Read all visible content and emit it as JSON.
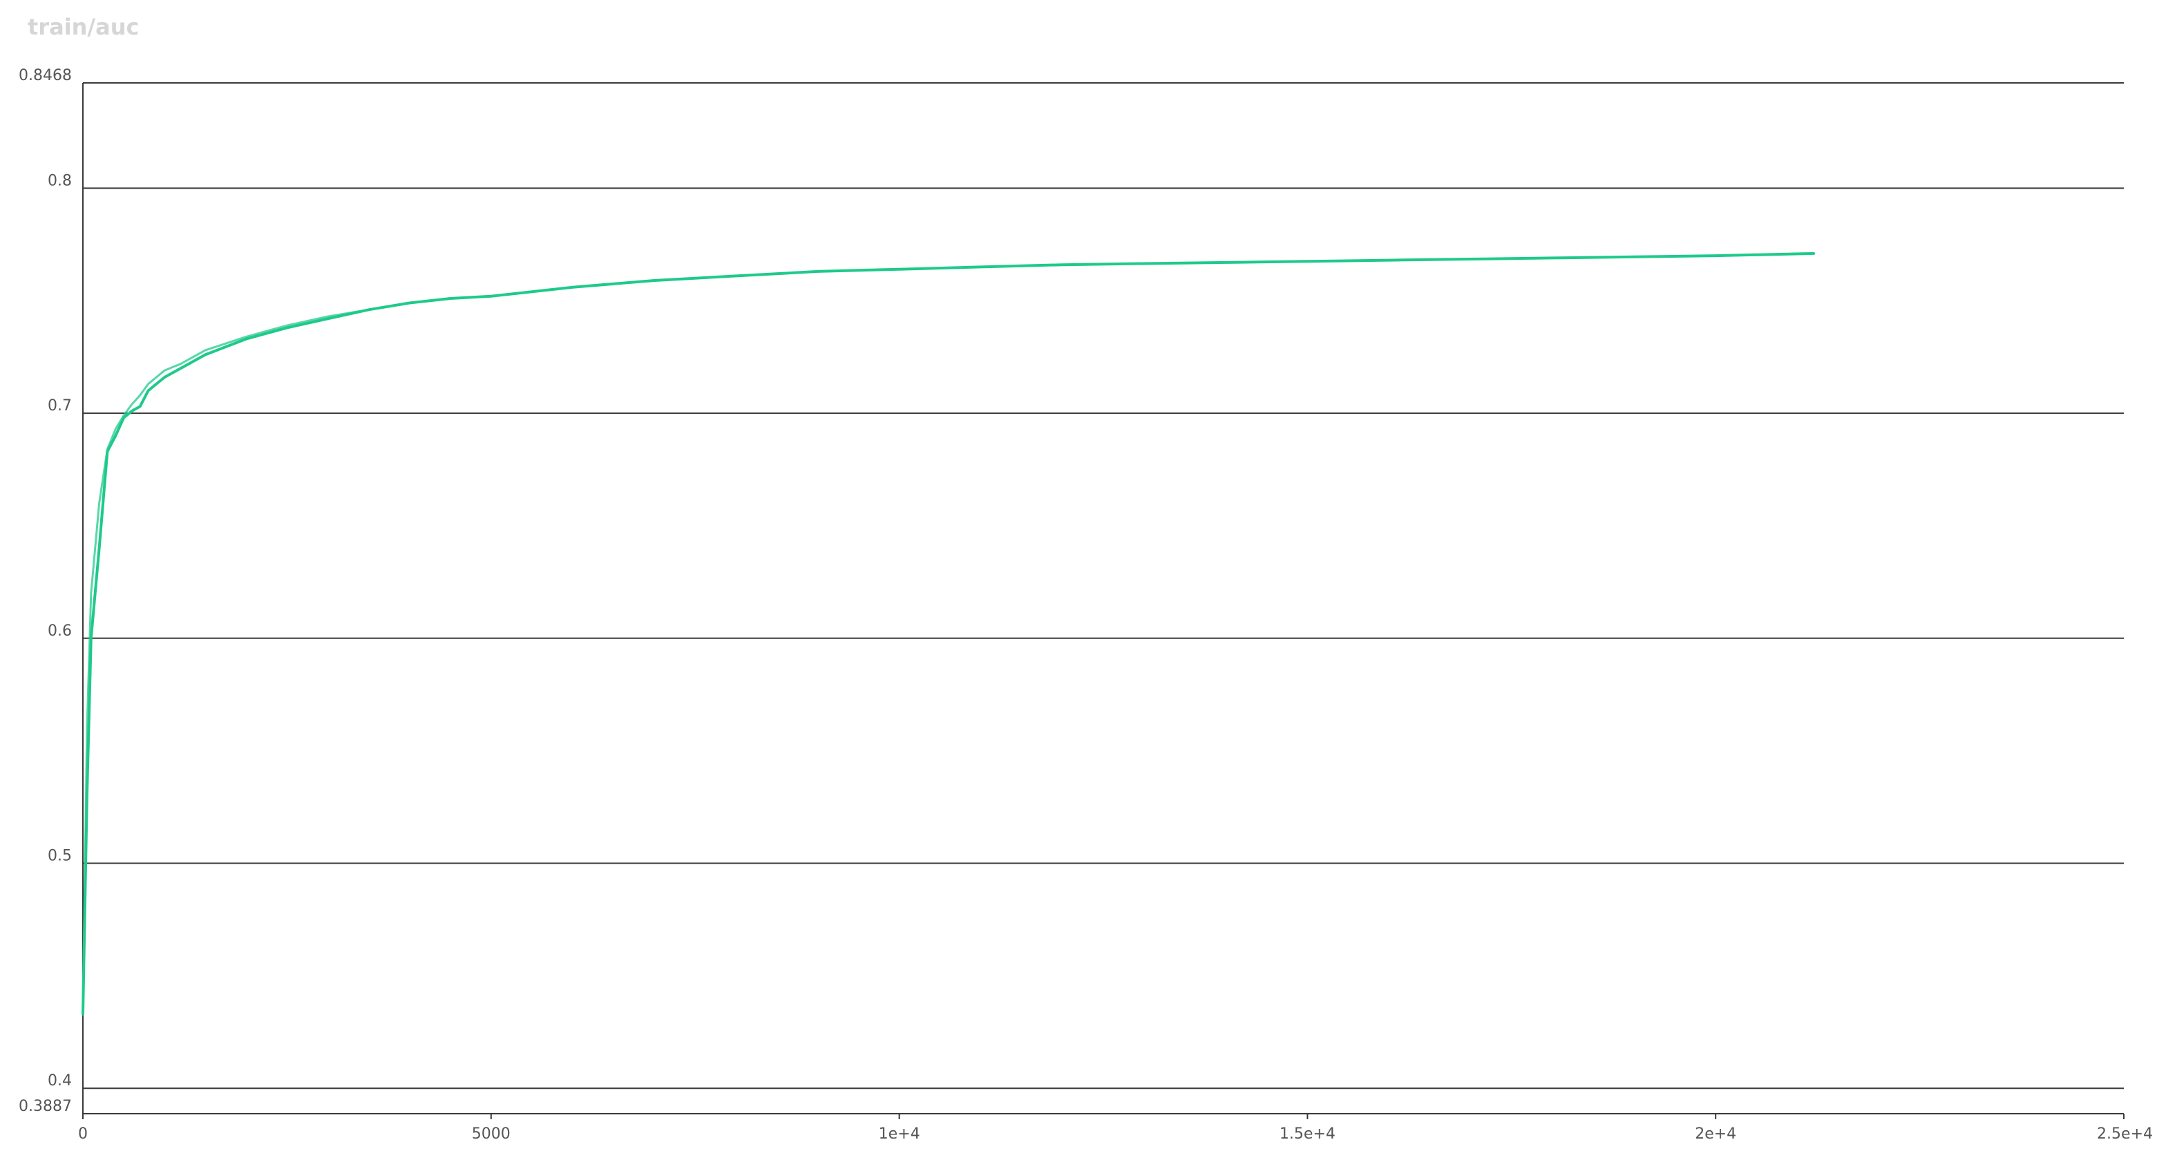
{
  "chart_data": {
    "type": "line",
    "title": "train/auc",
    "xlabel": "",
    "ylabel": "",
    "xlim": [
      0,
      25000
    ],
    "ylim": [
      0.3887,
      0.8468
    ],
    "grid": true,
    "x_ticks": [
      {
        "value": 0,
        "label": "0"
      },
      {
        "value": 5000,
        "label": "5000"
      },
      {
        "value": 10000,
        "label": "1e+4"
      },
      {
        "value": 15000,
        "label": "1.5e+4"
      },
      {
        "value": 20000,
        "label": "2e+4"
      },
      {
        "value": 25000,
        "label": "2.5e+4"
      }
    ],
    "y_ticks": [
      {
        "value": 0.3887,
        "label": "0.3887",
        "grid": false
      },
      {
        "value": 0.4,
        "label": "0.4",
        "grid": true
      },
      {
        "value": 0.5,
        "label": "0.5",
        "grid": true
      },
      {
        "value": 0.6,
        "label": "0.6",
        "grid": true
      },
      {
        "value": 0.7,
        "label": "0.7",
        "grid": true
      },
      {
        "value": 0.8,
        "label": "0.8",
        "grid": true
      },
      {
        "value": 0.8468,
        "label": "0.8468",
        "grid": true
      }
    ],
    "series": [
      {
        "color": "#1fc98b",
        "x": [
          0,
          50,
          100,
          200,
          300,
          400,
          500,
          600,
          700,
          800,
          1000,
          1200,
          1500,
          2000,
          2500,
          3000,
          3500,
          4000,
          4500,
          5000,
          5500,
          6000,
          7000,
          8000,
          9000,
          10000,
          11000,
          12000,
          13000,
          14000,
          15000,
          16000,
          17000,
          18000,
          19000,
          20000,
          21200
        ],
        "y": [
          0.433,
          0.53,
          0.6,
          0.64,
          0.683,
          0.69,
          0.698,
          0.701,
          0.703,
          0.71,
          0.716,
          0.72,
          0.726,
          0.733,
          0.738,
          0.742,
          0.746,
          0.749,
          0.751,
          0.752,
          0.754,
          0.756,
          0.759,
          0.761,
          0.763,
          0.764,
          0.765,
          0.766,
          0.7665,
          0.767,
          0.7675,
          0.768,
          0.7685,
          0.769,
          0.7695,
          0.77,
          0.771
        ]
      },
      {
        "color": "#1fc98b",
        "x": [
          0,
          50,
          100,
          200,
          300,
          400,
          500,
          600,
          700,
          800,
          1000,
          1200,
          1500,
          2000,
          2500,
          3000,
          3500,
          4000,
          4500,
          5000,
          5500,
          6000,
          7000,
          8000,
          9000,
          10000,
          11000,
          12000,
          13000,
          14000,
          15000,
          16000,
          17000,
          18000,
          19000,
          20000,
          21200
        ],
        "y": [
          0.433,
          0.56,
          0.62,
          0.66,
          0.684,
          0.693,
          0.699,
          0.704,
          0.708,
          0.713,
          0.719,
          0.722,
          0.728,
          0.734,
          0.739,
          0.743,
          0.746,
          0.749,
          0.751,
          0.752,
          0.754,
          0.756,
          0.759,
          0.761,
          0.763,
          0.764,
          0.765,
          0.766,
          0.7665,
          0.767,
          0.7675,
          0.768,
          0.7685,
          0.769,
          0.7695,
          0.77,
          0.771
        ]
      }
    ]
  }
}
